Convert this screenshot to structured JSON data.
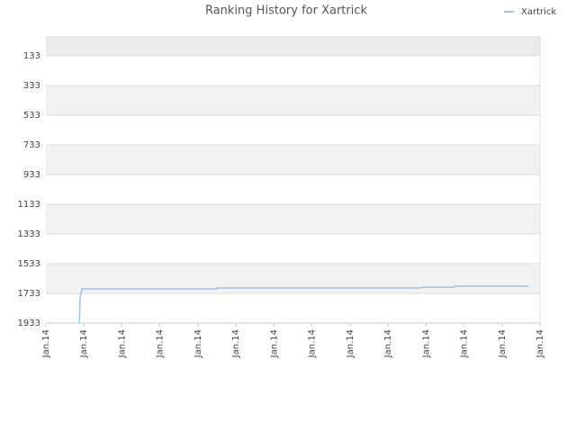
{
  "chart_data": {
    "type": "line",
    "title": "Ranking History for Xartrick",
    "x": [
      0.88,
      0.9,
      0.95,
      4.48,
      4.5,
      9.86,
      9.88,
      10.74,
      10.76,
      12.7
    ],
    "series": [
      {
        "name": "Xartrick",
        "color": "#99c3ee",
        "values": [
          1933,
          1760,
          1703,
          1703,
          1697,
          1697,
          1691,
          1691,
          1684,
          1684
        ]
      }
    ],
    "xlim": [
      0,
      13
    ],
    "xticks": [
      {
        "value": 0,
        "label": "Jan.14"
      },
      {
        "value": 1,
        "label": "Jan.14"
      },
      {
        "value": 2,
        "label": "Jan.14"
      },
      {
        "value": 3,
        "label": "Jan.14"
      },
      {
        "value": 4,
        "label": "Jan.14"
      },
      {
        "value": 5,
        "label": "Jan.14"
      },
      {
        "value": 6,
        "label": "Jan.14"
      },
      {
        "value": 7,
        "label": "Jan.14"
      },
      {
        "value": 8,
        "label": "Jan.14"
      },
      {
        "value": 9,
        "label": "Jan.14"
      },
      {
        "value": 10,
        "label": "Jan.14"
      },
      {
        "value": 11,
        "label": "Jan.14"
      },
      {
        "value": 12,
        "label": "Jan.14"
      },
      {
        "value": 13,
        "label": "Jan.14"
      }
    ],
    "ylim": [
      1933,
      0
    ],
    "yticks": [
      133,
      333,
      533,
      733,
      933,
      1133,
      1333,
      1533,
      1733,
      1933
    ],
    "grid": true,
    "legend": "top-right"
  }
}
